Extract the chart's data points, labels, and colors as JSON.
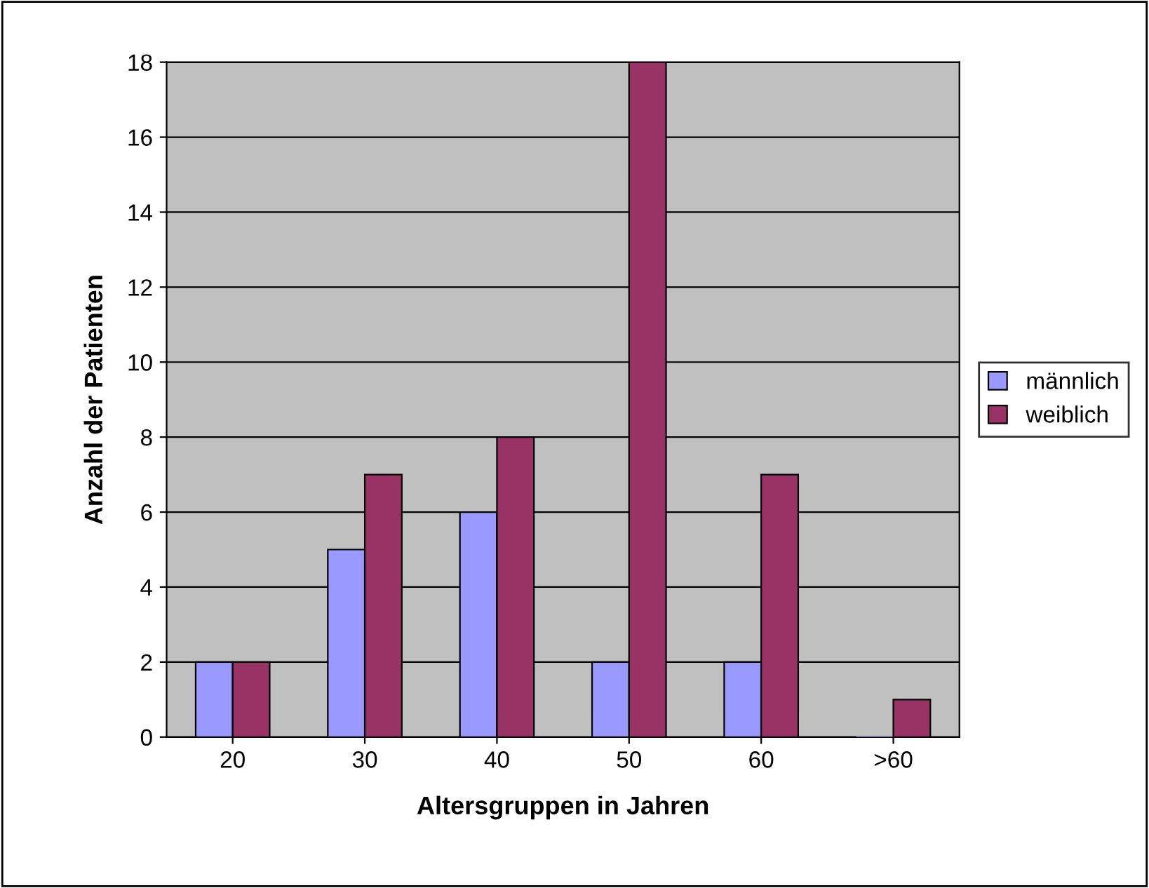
{
  "chart_data": {
    "type": "bar",
    "xlabel": "Altersgruppen in Jahren",
    "ylabel": "Anzahl der Patienten",
    "categories": [
      "20",
      "30",
      "40",
      "50",
      "60",
      ">60"
    ],
    "series": [
      {
        "name": "männlich",
        "color": "#9999ff",
        "values": [
          2,
          5,
          6,
          2,
          2,
          0
        ]
      },
      {
        "name": "weiblich",
        "color": "#993366",
        "values": [
          2,
          7,
          8,
          18,
          7,
          1
        ]
      }
    ],
    "ylim": [
      0,
      18
    ],
    "yticks": [
      0,
      2,
      4,
      6,
      8,
      10,
      12,
      14,
      16,
      18
    ],
    "grid": "y",
    "legend": "right"
  }
}
